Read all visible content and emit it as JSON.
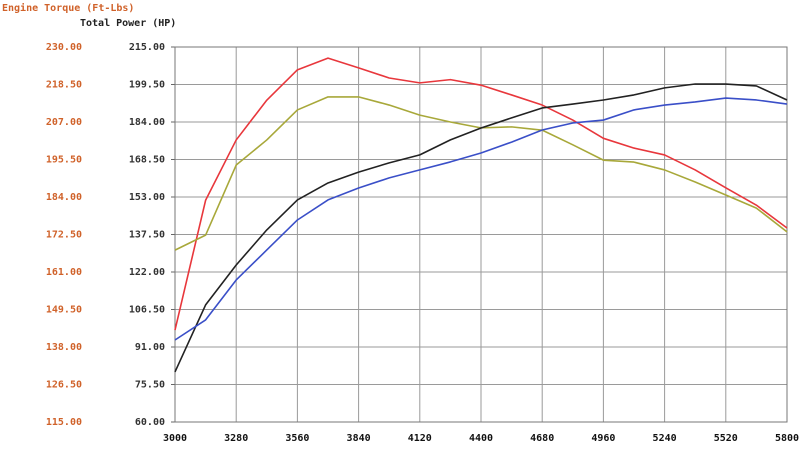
{
  "chart_data": {
    "type": "line",
    "ylabel": "Engine Torque (Ft-Lbs)",
    "y2label": "Total Power (HP)",
    "x": [
      3000,
      3140,
      3280,
      3420,
      3560,
      3700,
      3840,
      3980,
      4120,
      4260,
      4400,
      4540,
      4680,
      4820,
      4960,
      5100,
      5240,
      5380,
      5520,
      5660,
      5800
    ],
    "xlim": [
      3000,
      5800
    ],
    "xticks": [
      3000,
      3280,
      3560,
      3840,
      4120,
      4400,
      4680,
      4960,
      5240,
      5520,
      5800
    ],
    "ylim": [
      115,
      230
    ],
    "yticks": [
      {
        "value": 115,
        "label": "115.00"
      },
      {
        "value": 126.5,
        "label": "126.50"
      },
      {
        "value": 138,
        "label": "138.00"
      },
      {
        "value": 149.5,
        "label": "149.50"
      },
      {
        "value": 161,
        "label": "161.00"
      },
      {
        "value": 172.5,
        "label": "172.50"
      },
      {
        "value": 184,
        "label": "184.00"
      },
      {
        "value": 195.5,
        "label": "195.50"
      },
      {
        "value": 207,
        "label": "207.00"
      },
      {
        "value": 218.5,
        "label": "218.50"
      },
      {
        "value": 230,
        "label": "230.00"
      }
    ],
    "y2lim": [
      60,
      215
    ],
    "y2ticks": [
      {
        "value": 60,
        "label": "60.00"
      },
      {
        "value": 75.5,
        "label": "75.50"
      },
      {
        "value": 91,
        "label": "91.00"
      },
      {
        "value": 106.5,
        "label": "106.50"
      },
      {
        "value": 122,
        "label": "122.00"
      },
      {
        "value": 137.5,
        "label": "137.50"
      },
      {
        "value": 153,
        "label": "153.00"
      },
      {
        "value": 168.5,
        "label": "168.50"
      },
      {
        "value": 184,
        "label": "184.00"
      },
      {
        "value": 199.5,
        "label": "199.50"
      },
      {
        "value": 215,
        "label": "215.00"
      }
    ],
    "grid": true,
    "series": [
      {
        "color": "#e8373c",
        "values": [
          143.2,
          183,
          201.5,
          213.7,
          223,
          226.6,
          223.6,
          220.5,
          219,
          220,
          218.3,
          215.3,
          212.2,
          207.6,
          202,
          199,
          196.9,
          192.3,
          186.8,
          181.5,
          174.5
        ]
      },
      {
        "color": "#a8a83a",
        "values": [
          167.7,
          172.3,
          193.8,
          201.5,
          210.7,
          214.7,
          214.7,
          212.2,
          209.1,
          207,
          205.2,
          205.5,
          204.5,
          200,
          195.3,
          194.7,
          192.3,
          188.6,
          184.6,
          180.6,
          173.3
        ]
      },
      {
        "color": "#222222",
        "axis": "y2",
        "values": [
          80.7,
          108.4,
          124.9,
          139.4,
          151.8,
          158.8,
          163.3,
          167.1,
          170.4,
          176.6,
          181.5,
          185.7,
          189.8,
          191.4,
          193.1,
          195.2,
          198.1,
          199.7,
          199.7,
          198.9,
          193.1
        ]
      },
      {
        "color": "#3a4fc8",
        "axis": "y2",
        "values": [
          93.9,
          102.2,
          118.7,
          131.1,
          143.5,
          151.8,
          156.7,
          160.9,
          164.2,
          167.5,
          171.2,
          175.7,
          180.7,
          183.6,
          184.8,
          189,
          191,
          192.3,
          193.9,
          193.1,
          191.4
        ]
      }
    ]
  }
}
